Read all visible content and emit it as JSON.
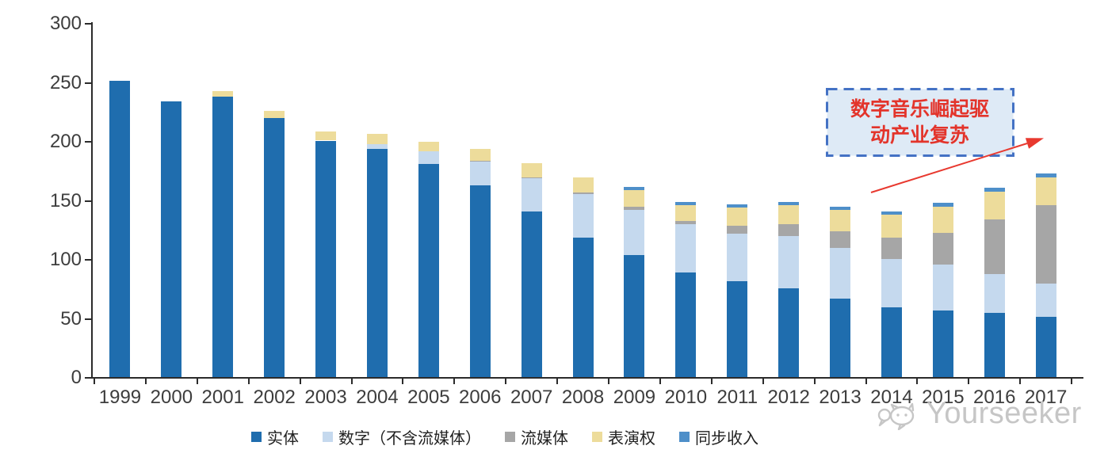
{
  "chart_data": {
    "type": "bar",
    "stacked": true,
    "title": "",
    "xlabel": "",
    "ylabel": "",
    "categories": [
      "1999",
      "2000",
      "2001",
      "2002",
      "2003",
      "2004",
      "2005",
      "2006",
      "2007",
      "2008",
      "2009",
      "2010",
      "2011",
      "2012",
      "2013",
      "2014",
      "2015",
      "2016",
      "2017"
    ],
    "series": [
      {
        "name": "实体",
        "color": "#1F6DAE",
        "values": [
          252,
          234,
          238,
          220,
          201,
          194,
          181,
          163,
          141,
          119,
          104,
          89,
          82,
          76,
          67,
          60,
          57,
          55,
          52
        ]
      },
      {
        "name": "数字（不含流媒体）",
        "color": "#C5D9EE",
        "values": [
          0,
          0,
          0,
          0,
          0,
          4,
          11,
          20,
          28,
          37,
          38,
          41,
          40,
          44,
          43,
          41,
          39,
          33,
          28
        ]
      },
      {
        "name": "流媒体",
        "color": "#A6A6A6",
        "values": [
          0,
          0,
          0,
          0,
          0,
          0,
          0,
          1,
          1,
          1,
          3,
          3,
          7,
          10,
          14,
          18,
          27,
          46,
          66
        ]
      },
      {
        "name": "表演权",
        "color": "#EDDC9B",
        "values": [
          0,
          0,
          5,
          6,
          8,
          9,
          8,
          10,
          12,
          13,
          14,
          13,
          15,
          16,
          18,
          19,
          22,
          24,
          24
        ]
      },
      {
        "name": "同步收入",
        "color": "#4E8FC9",
        "values": [
          0,
          0,
          0,
          0,
          0,
          0,
          0,
          0,
          0,
          0,
          3,
          3,
          3,
          3,
          3,
          3,
          3,
          3,
          3
        ]
      }
    ],
    "ylim": [
      0,
      300
    ],
    "yticks": [
      0,
      50,
      100,
      150,
      200,
      250,
      300
    ],
    "grid": false,
    "legend_position": "bottom"
  },
  "annotation": {
    "line1": "数字音乐崛起驱",
    "line2": "动产业复苏",
    "border_color": "#4472C4",
    "bg_color": "#DEEAF6",
    "text_color": "#E3342B",
    "arrow_color": "#E8392F"
  },
  "watermark": {
    "text": "Yourseeker",
    "logo": "chat-bubbles-icon",
    "color": "#C6C6C6"
  }
}
